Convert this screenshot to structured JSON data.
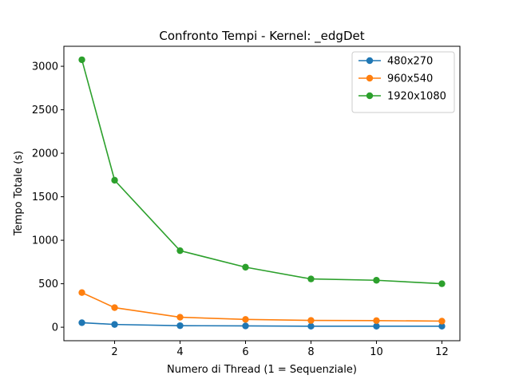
{
  "chart_data": {
    "type": "line",
    "title": "Confronto Tempi - Kernel: _edgDet",
    "xlabel": "Numero di Thread (1 = Sequenziale)",
    "ylabel": "Tempo Totale (s)",
    "x": [
      1,
      2,
      4,
      6,
      8,
      10,
      12
    ],
    "xlim": [
      0.45,
      12.55
    ],
    "ylim": [
      -155,
      3230
    ],
    "xticks": [
      2,
      4,
      6,
      8,
      10,
      12
    ],
    "yticks": [
      0,
      500,
      1000,
      1500,
      2000,
      2500,
      3000
    ],
    "grid": false,
    "legend_position": "top-right",
    "series": [
      {
        "name": "480x270",
        "color": "#1f77b4",
        "values": [
          52,
          32,
          18,
          15,
          12,
          12,
          12
        ]
      },
      {
        "name": "960x540",
        "color": "#ff7f0e",
        "values": [
          398,
          225,
          115,
          90,
          78,
          76,
          70
        ]
      },
      {
        "name": "1920x1080",
        "color": "#2ca02c",
        "values": [
          3075,
          1690,
          880,
          690,
          555,
          540,
          500
        ]
      }
    ]
  }
}
